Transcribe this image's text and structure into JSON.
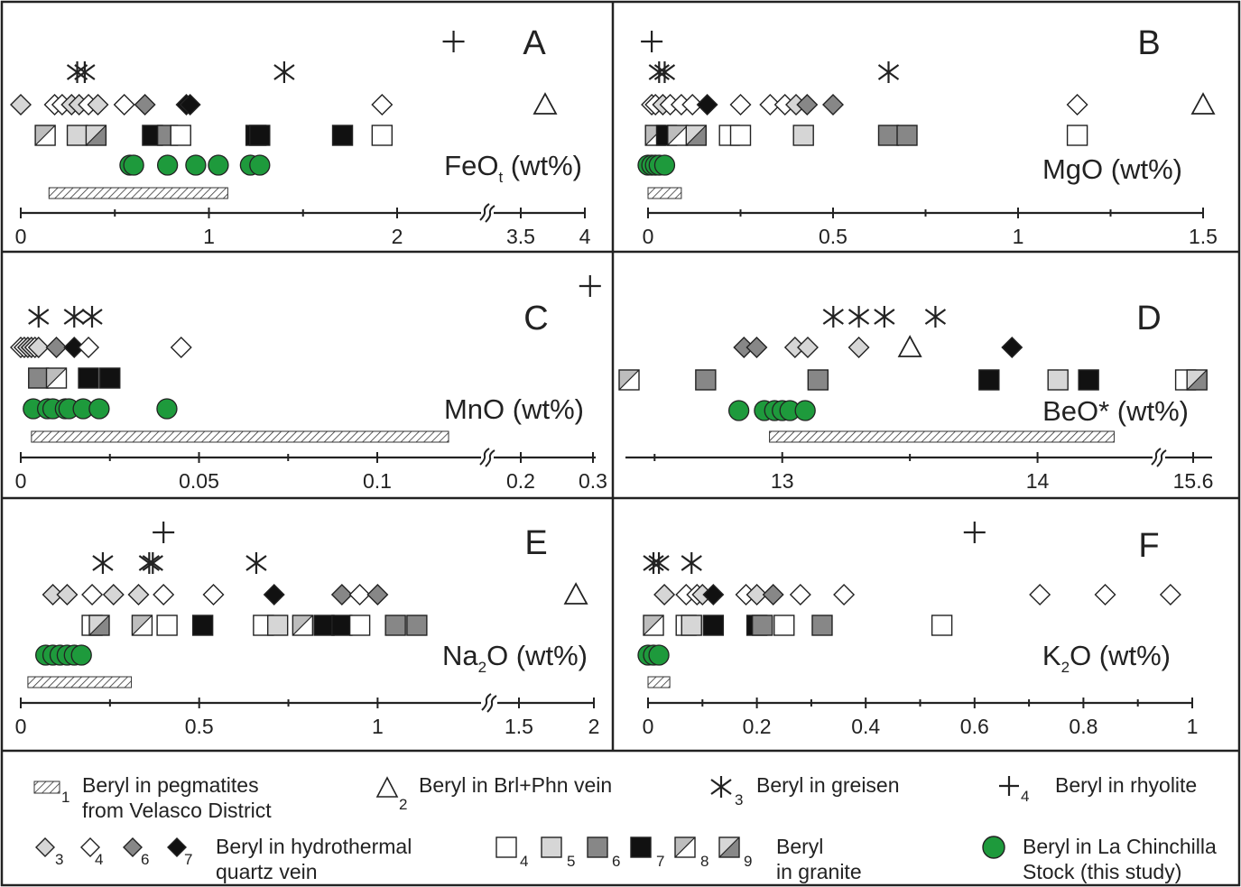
{
  "chart_data": [
    {
      "panel": "A",
      "type": "scatter",
      "label": "FeO",
      "label_sub": "t",
      "label_suffix": " (wt%)",
      "ticks": [
        "0",
        "1",
        "2",
        "3.5",
        "4"
      ],
      "marks": [
        {
          "s": "plus",
          "x": 2.3,
          "row": 0
        },
        {
          "s": "ast",
          "x": 0.3,
          "row": 1
        },
        {
          "s": "ast",
          "x": 0.34,
          "row": 1
        },
        {
          "s": "ast",
          "x": 1.4,
          "row": 1
        },
        {
          "s": "d3",
          "x": 0.0,
          "row": 2
        },
        {
          "s": "d4",
          "x": 0.18,
          "row": 2
        },
        {
          "s": "d4",
          "x": 0.22,
          "row": 2
        },
        {
          "s": "d3",
          "x": 0.27,
          "row": 2
        },
        {
          "s": "d3",
          "x": 0.31,
          "row": 2
        },
        {
          "s": "d4",
          "x": 0.36,
          "row": 2
        },
        {
          "s": "d3",
          "x": 0.41,
          "row": 2
        },
        {
          "s": "d4",
          "x": 0.55,
          "row": 2
        },
        {
          "s": "d6",
          "x": 0.66,
          "row": 2
        },
        {
          "s": "d7",
          "x": 0.88,
          "row": 2
        },
        {
          "s": "d7",
          "x": 0.9,
          "row": 2
        },
        {
          "s": "d4",
          "x": 1.92,
          "row": 2
        },
        {
          "s": "tri",
          "x": 3.69,
          "row": 2
        },
        {
          "s": "s8",
          "x": 0.13,
          "row": 3
        },
        {
          "s": "s5",
          "x": 0.3,
          "row": 3
        },
        {
          "s": "s9",
          "x": 0.4,
          "row": 3
        },
        {
          "s": "s7",
          "x": 0.7,
          "row": 3
        },
        {
          "s": "s6",
          "x": 0.78,
          "row": 3
        },
        {
          "s": "s4",
          "x": 0.85,
          "row": 3
        },
        {
          "s": "s7",
          "x": 1.25,
          "row": 3
        },
        {
          "s": "s7",
          "x": 1.27,
          "row": 3
        },
        {
          "s": "s7",
          "x": 1.71,
          "row": 3
        },
        {
          "s": "s4",
          "x": 1.92,
          "row": 3
        },
        {
          "s": "g",
          "x": 0.58,
          "row": 4
        },
        {
          "s": "g",
          "x": 0.6,
          "row": 4
        },
        {
          "s": "g",
          "x": 0.78,
          "row": 4
        },
        {
          "s": "g",
          "x": 0.93,
          "row": 4
        },
        {
          "s": "g",
          "x": 1.05,
          "row": 4
        },
        {
          "s": "g",
          "x": 1.22,
          "row": 4
        },
        {
          "s": "g",
          "x": 1.27,
          "row": 4
        }
      ],
      "ranges": [
        {
          "from": 0.15,
          "to": 1.1
        }
      ]
    },
    {
      "panel": "B",
      "type": "scatter",
      "label": "MgO",
      "label_sub": "",
      "label_suffix": " (wt%)",
      "ticks": [
        "0",
        "0.5",
        "1",
        "1.5"
      ],
      "marks": [
        {
          "s": "plus",
          "x": 0.01,
          "row": 0
        },
        {
          "s": "ast",
          "x": 0.03,
          "row": 1
        },
        {
          "s": "ast",
          "x": 0.045,
          "row": 1
        },
        {
          "s": "ast",
          "x": 0.65,
          "row": 1
        },
        {
          "s": "d4",
          "x": 0.01,
          "row": 2
        },
        {
          "s": "d4",
          "x": 0.02,
          "row": 2
        },
        {
          "s": "d3",
          "x": 0.04,
          "row": 2
        },
        {
          "s": "d4",
          "x": 0.06,
          "row": 2
        },
        {
          "s": "d4",
          "x": 0.09,
          "row": 2
        },
        {
          "s": "d4",
          "x": 0.12,
          "row": 2
        },
        {
          "s": "d7",
          "x": 0.16,
          "row": 2
        },
        {
          "s": "d4",
          "x": 0.25,
          "row": 2
        },
        {
          "s": "d4",
          "x": 0.33,
          "row": 2
        },
        {
          "s": "d4",
          "x": 0.37,
          "row": 2
        },
        {
          "s": "d3",
          "x": 0.4,
          "row": 2
        },
        {
          "s": "d6",
          "x": 0.43,
          "row": 2
        },
        {
          "s": "d6",
          "x": 0.5,
          "row": 2
        },
        {
          "s": "d4",
          "x": 1.16,
          "row": 2
        },
        {
          "s": "tri",
          "x": 1.5,
          "row": 2
        },
        {
          "s": "s8",
          "x": 0.02,
          "row": 3
        },
        {
          "s": "s7",
          "x": 0.05,
          "row": 3
        },
        {
          "s": "s8",
          "x": 0.08,
          "row": 3
        },
        {
          "s": "s9",
          "x": 0.13,
          "row": 3
        },
        {
          "s": "s4",
          "x": 0.22,
          "row": 3
        },
        {
          "s": "s4",
          "x": 0.25,
          "row": 3
        },
        {
          "s": "s5",
          "x": 0.42,
          "row": 3
        },
        {
          "s": "s6",
          "x": 0.65,
          "row": 3
        },
        {
          "s": "s6",
          "x": 0.7,
          "row": 3
        },
        {
          "s": "s4",
          "x": 1.16,
          "row": 3
        },
        {
          "s": "g",
          "x": 0.0,
          "row": 4
        },
        {
          "s": "g",
          "x": 0.01,
          "row": 4
        },
        {
          "s": "g",
          "x": 0.02,
          "row": 4
        },
        {
          "s": "g",
          "x": 0.03,
          "row": 4
        },
        {
          "s": "g",
          "x": 0.045,
          "row": 4
        }
      ],
      "ranges": [
        {
          "from": 0.0,
          "to": 0.09
        }
      ]
    },
    {
      "panel": "C",
      "type": "scatter",
      "label": "MnO",
      "label_sub": "",
      "label_suffix": " (wt%)",
      "ticks": [
        "0",
        "0.05",
        "0.1",
        "0.2",
        "0.3"
      ],
      "marks": [
        {
          "s": "plus",
          "x": 0.296,
          "row": -1
        },
        {
          "s": "ast",
          "x": 0.005,
          "row": 1
        },
        {
          "s": "ast",
          "x": 0.015,
          "row": 1
        },
        {
          "s": "ast",
          "x": 0.02,
          "row": 1
        },
        {
          "s": "d4",
          "x": 0.0,
          "row": 2
        },
        {
          "s": "d4",
          "x": 0.001,
          "row": 2
        },
        {
          "s": "d3",
          "x": 0.002,
          "row": 2
        },
        {
          "s": "d3",
          "x": 0.003,
          "row": 2
        },
        {
          "s": "d4",
          "x": 0.004,
          "row": 2
        },
        {
          "s": "d3",
          "x": 0.005,
          "row": 2
        },
        {
          "s": "d6",
          "x": 0.01,
          "row": 2
        },
        {
          "s": "d7",
          "x": 0.015,
          "row": 2
        },
        {
          "s": "d4",
          "x": 0.019,
          "row": 2
        },
        {
          "s": "d4",
          "x": 0.045,
          "row": 2
        },
        {
          "s": "s6",
          "x": 0.005,
          "row": 3
        },
        {
          "s": "s8",
          "x": 0.01,
          "row": 3
        },
        {
          "s": "s7",
          "x": 0.019,
          "row": 3
        },
        {
          "s": "s7",
          "x": 0.025,
          "row": 3
        },
        {
          "s": "g",
          "x": 0.0035,
          "row": 4
        },
        {
          "s": "g",
          "x": 0.0075,
          "row": 4
        },
        {
          "s": "g",
          "x": 0.009,
          "row": 4
        },
        {
          "s": "g",
          "x": 0.0125,
          "row": 4
        },
        {
          "s": "g",
          "x": 0.0135,
          "row": 4
        },
        {
          "s": "g",
          "x": 0.0175,
          "row": 4
        },
        {
          "s": "g",
          "x": 0.022,
          "row": 4
        },
        {
          "s": "g",
          "x": 0.041,
          "row": 4
        }
      ],
      "ranges": [
        {
          "from": 0.003,
          "to": 0.12
        }
      ]
    },
    {
      "panel": "D",
      "type": "scatter",
      "label": "BeO*",
      "label_sub": "",
      "label_suffix": " (wt%)",
      "ticks": [
        "13",
        "14",
        "15.6"
      ],
      "marks": [
        {
          "s": "ast",
          "x": 13.2,
          "row": 1
        },
        {
          "s": "ast",
          "x": 13.3,
          "row": 1
        },
        {
          "s": "ast",
          "x": 13.4,
          "row": 1
        },
        {
          "s": "ast",
          "x": 13.6,
          "row": 1
        },
        {
          "s": "d6",
          "x": 12.85,
          "row": 2
        },
        {
          "s": "d6",
          "x": 12.9,
          "row": 2
        },
        {
          "s": "d3",
          "x": 13.05,
          "row": 2
        },
        {
          "s": "d3",
          "x": 13.1,
          "row": 2
        },
        {
          "s": "d3",
          "x": 13.3,
          "row": 2
        },
        {
          "s": "tri",
          "x": 13.5,
          "row": 2
        },
        {
          "s": "d7",
          "x": 13.9,
          "row": 2
        },
        {
          "s": "s8",
          "x": 12.4,
          "row": 3
        },
        {
          "s": "s6",
          "x": 12.7,
          "row": 3
        },
        {
          "s": "s6",
          "x": 13.14,
          "row": 3
        },
        {
          "s": "s7",
          "x": 13.81,
          "row": 3
        },
        {
          "s": "s5",
          "x": 14.08,
          "row": 3
        },
        {
          "s": "s7",
          "x": 14.2,
          "row": 3
        },
        {
          "s": "s4",
          "x": 15.56,
          "row": 3
        },
        {
          "s": "s9",
          "x": 15.62,
          "row": 3
        },
        {
          "s": "g",
          "x": 12.83,
          "row": 4
        },
        {
          "s": "g",
          "x": 12.93,
          "row": 4
        },
        {
          "s": "g",
          "x": 12.97,
          "row": 4
        },
        {
          "s": "g",
          "x": 13.0,
          "row": 4
        },
        {
          "s": "g",
          "x": 13.03,
          "row": 4
        },
        {
          "s": "g",
          "x": 13.09,
          "row": 4
        }
      ],
      "ranges": [
        {
          "from": 12.95,
          "to": 14.3
        }
      ]
    },
    {
      "panel": "E",
      "type": "scatter",
      "label": "Na",
      "label_sub": "2",
      "label_suffix": "O (wt%)",
      "ticks": [
        "0",
        "0.5",
        "1",
        "1.5",
        "2"
      ],
      "marks": [
        {
          "s": "plus",
          "x": 0.4,
          "row": 0
        },
        {
          "s": "ast",
          "x": 0.23,
          "row": 1
        },
        {
          "s": "ast",
          "x": 0.36,
          "row": 1
        },
        {
          "s": "ast",
          "x": 0.37,
          "row": 1
        },
        {
          "s": "ast",
          "x": 0.66,
          "row": 1
        },
        {
          "s": "d3",
          "x": 0.09,
          "row": 2
        },
        {
          "s": "d3",
          "x": 0.13,
          "row": 2
        },
        {
          "s": "d4",
          "x": 0.2,
          "row": 2
        },
        {
          "s": "d3",
          "x": 0.26,
          "row": 2
        },
        {
          "s": "d3",
          "x": 0.33,
          "row": 2
        },
        {
          "s": "d4",
          "x": 0.4,
          "row": 2
        },
        {
          "s": "d4",
          "x": 0.54,
          "row": 2
        },
        {
          "s": "d7",
          "x": 0.71,
          "row": 2
        },
        {
          "s": "d6",
          "x": 0.9,
          "row": 2
        },
        {
          "s": "d4",
          "x": 0.95,
          "row": 2
        },
        {
          "s": "d6",
          "x": 1.0,
          "row": 2
        },
        {
          "s": "tri",
          "x": 1.88,
          "row": 2
        },
        {
          "s": "s4",
          "x": 0.2,
          "row": 3
        },
        {
          "s": "s9",
          "x": 0.22,
          "row": 3
        },
        {
          "s": "s8",
          "x": 0.34,
          "row": 3
        },
        {
          "s": "s4",
          "x": 0.41,
          "row": 3
        },
        {
          "s": "s7",
          "x": 0.51,
          "row": 3
        },
        {
          "s": "s4",
          "x": 0.68,
          "row": 3
        },
        {
          "s": "s5",
          "x": 0.72,
          "row": 3
        },
        {
          "s": "s8",
          "x": 0.79,
          "row": 3
        },
        {
          "s": "s7",
          "x": 0.85,
          "row": 3
        },
        {
          "s": "s7",
          "x": 0.9,
          "row": 3
        },
        {
          "s": "s4",
          "x": 0.95,
          "row": 3
        },
        {
          "s": "s6",
          "x": 1.05,
          "row": 3
        },
        {
          "s": "s6",
          "x": 1.11,
          "row": 3
        },
        {
          "s": "g",
          "x": 0.07,
          "row": 4
        },
        {
          "s": "g",
          "x": 0.09,
          "row": 4
        },
        {
          "s": "g",
          "x": 0.11,
          "row": 4
        },
        {
          "s": "g",
          "x": 0.13,
          "row": 4
        },
        {
          "s": "g",
          "x": 0.15,
          "row": 4
        },
        {
          "s": "g",
          "x": 0.17,
          "row": 4
        }
      ],
      "ranges": [
        {
          "from": 0.02,
          "to": 0.31
        }
      ]
    },
    {
      "panel": "F",
      "type": "scatter",
      "label": "K",
      "label_sub": "2",
      "label_suffix": "O (wt%)",
      "ticks": [
        "0",
        "0.2",
        "0.4",
        "0.6",
        "0.8",
        "1"
      ],
      "marks": [
        {
          "s": "plus",
          "x": 0.6,
          "row": 0
        },
        {
          "s": "ast",
          "x": 0.01,
          "row": 1
        },
        {
          "s": "ast",
          "x": 0.02,
          "row": 1
        },
        {
          "s": "ast",
          "x": 0.08,
          "row": 1
        },
        {
          "s": "d3",
          "x": 0.03,
          "row": 2
        },
        {
          "s": "d4",
          "x": 0.07,
          "row": 2
        },
        {
          "s": "d4",
          "x": 0.09,
          "row": 2
        },
        {
          "s": "d3",
          "x": 0.1,
          "row": 2
        },
        {
          "s": "d7",
          "x": 0.12,
          "row": 2
        },
        {
          "s": "d4",
          "x": 0.18,
          "row": 2
        },
        {
          "s": "d3",
          "x": 0.2,
          "row": 2
        },
        {
          "s": "d6",
          "x": 0.23,
          "row": 2
        },
        {
          "s": "d4",
          "x": 0.28,
          "row": 2
        },
        {
          "s": "d4",
          "x": 0.36,
          "row": 2
        },
        {
          "s": "d4",
          "x": 0.72,
          "row": 2
        },
        {
          "s": "d4",
          "x": 0.84,
          "row": 2
        },
        {
          "s": "d4",
          "x": 0.96,
          "row": 2
        },
        {
          "s": "s8",
          "x": 0.01,
          "row": 3
        },
        {
          "s": "s4",
          "x": 0.07,
          "row": 3
        },
        {
          "s": "s5",
          "x": 0.08,
          "row": 3
        },
        {
          "s": "s7",
          "x": 0.12,
          "row": 3
        },
        {
          "s": "s7",
          "x": 0.2,
          "row": 3
        },
        {
          "s": "s6",
          "x": 0.21,
          "row": 3
        },
        {
          "s": "s4",
          "x": 0.25,
          "row": 3
        },
        {
          "s": "s6",
          "x": 0.32,
          "row": 3
        },
        {
          "s": "s4",
          "x": 0.54,
          "row": 3
        },
        {
          "s": "g",
          "x": 0.0,
          "row": 4
        },
        {
          "s": "g",
          "x": 0.01,
          "row": 4
        },
        {
          "s": "g",
          "x": 0.02,
          "row": 4
        }
      ],
      "ranges": [
        {
          "from": 0.0,
          "to": 0.04
        }
      ]
    }
  ],
  "legend": {
    "pegmatite": {
      "text1": "Beryl in pegmatites",
      "text2": "from Velasco District",
      "num": "1"
    },
    "vein": {
      "text": "Beryl in Brl+Phn vein",
      "num": "2"
    },
    "greisen": {
      "text": "Beryl in greisen",
      "num": "3"
    },
    "rhyolite": {
      "text": "Beryl in rhyolite",
      "num": "4"
    },
    "hydrothermal": {
      "text1": "Beryl in hydrothermal",
      "text2": "quartz vein",
      "nums": [
        "3",
        "4",
        "6",
        "7"
      ]
    },
    "granite": {
      "text1": "Beryl",
      "text2": "in granite",
      "nums": [
        "4",
        "5",
        "6",
        "7",
        "8",
        "9"
      ]
    },
    "stock": {
      "text1": "Beryl in La Chinchilla",
      "text2": "Stock (this study)"
    }
  },
  "colors": {
    "green": "#1e9a3c",
    "gray_dark": "#878787",
    "gray_light": "#d6d6d6",
    "gray_mid": "#bdbdbd",
    "black": "#111111",
    "white": "#ffffff",
    "border": "#222222"
  }
}
